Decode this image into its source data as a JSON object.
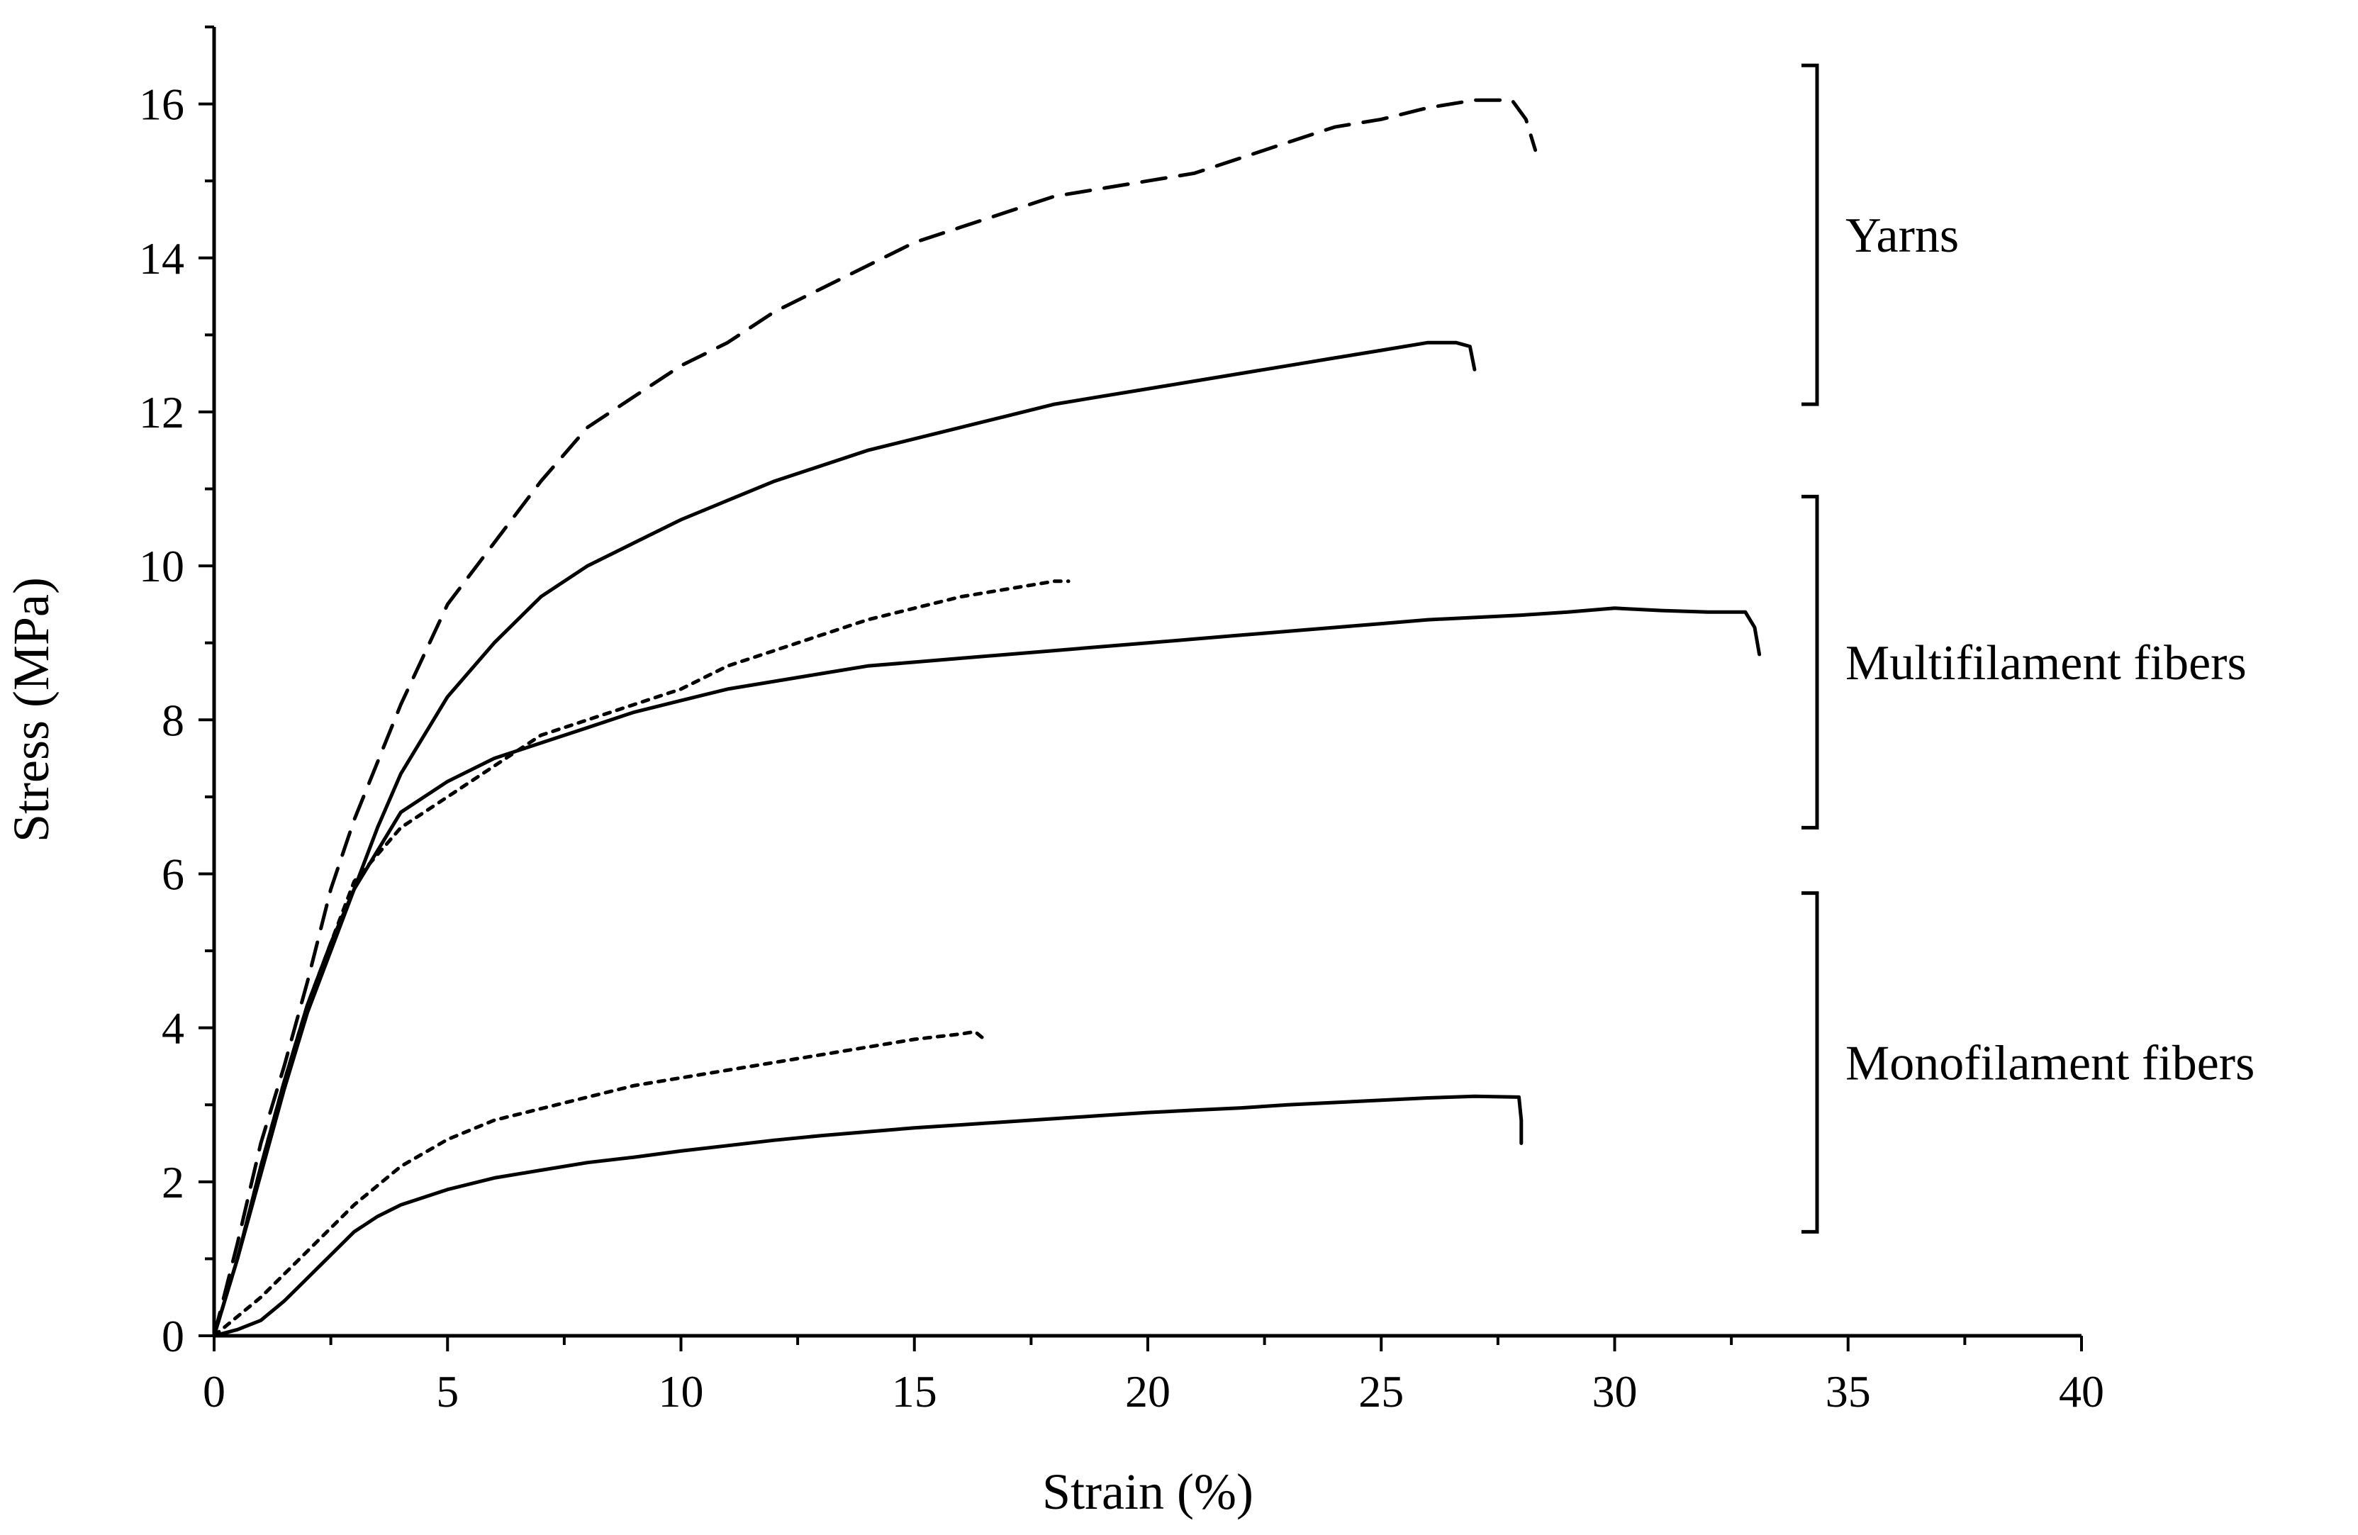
{
  "chart_data": {
    "type": "line",
    "title": "",
    "xlabel": "Strain (%)",
    "ylabel": "Stress (MPa)",
    "xlim": [
      0,
      40
    ],
    "ylim": [
      0,
      17
    ],
    "xticks": [
      0,
      5,
      10,
      15,
      20,
      25,
      30,
      35,
      40
    ],
    "yticks": [
      0,
      2,
      4,
      6,
      8,
      10,
      12,
      14,
      16
    ],
    "xtick_labels": [
      "0",
      "5",
      "10",
      "15",
      "20",
      "25",
      "30",
      "35",
      "40"
    ],
    "ytick_labels": [
      "0",
      "2",
      "4",
      "6",
      "8",
      "10",
      "12",
      "14",
      "16"
    ],
    "grid": false,
    "groups": [
      {
        "label": "Yarns",
        "y_range": [
          12.1,
          16.5
        ]
      },
      {
        "label": "Multifilament fibers",
        "y_range": [
          6.6,
          10.9
        ]
      },
      {
        "label": "Monofilament fibers",
        "y_range": [
          1.35,
          5.75
        ]
      }
    ],
    "series": [
      {
        "name": "Yarns (dashed)",
        "group": "Yarns",
        "style": "dashed",
        "x": [
          0,
          0.5,
          1,
          1.5,
          2,
          2.5,
          3,
          4,
          5,
          6,
          7,
          8,
          9,
          10,
          11,
          12,
          13,
          14,
          15,
          16,
          17,
          18,
          19,
          20,
          21,
          22,
          23,
          24,
          25,
          26,
          27,
          27.8,
          28.1,
          28.3
        ],
        "y": [
          0,
          1.2,
          2.5,
          3.5,
          4.6,
          5.8,
          6.7,
          8.2,
          9.5,
          10.3,
          11.1,
          11.8,
          12.2,
          12.6,
          12.9,
          13.3,
          13.6,
          13.9,
          14.2,
          14.4,
          14.6,
          14.8,
          14.9,
          15.0,
          15.1,
          15.3,
          15.5,
          15.7,
          15.8,
          15.95,
          16.05,
          16.05,
          15.8,
          15.4
        ]
      },
      {
        "name": "Yarns (solid)",
        "group": "Yarns",
        "style": "solid",
        "x": [
          0,
          0.5,
          1,
          1.5,
          2,
          2.5,
          3,
          3.5,
          4,
          5,
          6,
          7,
          8,
          9,
          10,
          11,
          12,
          13,
          14,
          15,
          16,
          17,
          18,
          19,
          20,
          21,
          22,
          23,
          24,
          25,
          26,
          26.6,
          26.9,
          27.0
        ],
        "y": [
          0,
          1.0,
          2.1,
          3.2,
          4.2,
          5.0,
          5.8,
          6.6,
          7.3,
          8.3,
          9.0,
          9.6,
          10.0,
          10.3,
          10.6,
          10.85,
          11.1,
          11.3,
          11.5,
          11.65,
          11.8,
          11.95,
          12.1,
          12.2,
          12.3,
          12.4,
          12.5,
          12.6,
          12.7,
          12.8,
          12.9,
          12.9,
          12.85,
          12.55
        ]
      },
      {
        "name": "Multifilament fibers (dotted)",
        "group": "Multifilament fibers",
        "style": "dotted",
        "x": [
          0,
          0.5,
          1,
          1.5,
          2,
          2.5,
          3,
          4,
          5,
          6,
          7,
          8,
          9,
          10,
          11,
          12,
          13,
          14,
          15,
          16,
          17,
          18,
          18.3
        ],
        "y": [
          0,
          1.0,
          2.2,
          3.3,
          4.3,
          5.1,
          5.9,
          6.6,
          7.0,
          7.4,
          7.8,
          8.0,
          8.2,
          8.4,
          8.7,
          8.9,
          9.1,
          9.3,
          9.45,
          9.6,
          9.7,
          9.8,
          9.8
        ]
      },
      {
        "name": "Multifilament fibers (solid)",
        "group": "Multifilament fibers",
        "style": "solid",
        "x": [
          0,
          0.5,
          1,
          1.5,
          2,
          2.5,
          3,
          3.5,
          4,
          5,
          6,
          7,
          8,
          9,
          10,
          11,
          12,
          13,
          14,
          15,
          16,
          17,
          18,
          19,
          20,
          21,
          22,
          23,
          24,
          25,
          26,
          27,
          28,
          29,
          30,
          31,
          32,
          32.8,
          33.0,
          33.1
        ],
        "y": [
          0,
          1.0,
          2.2,
          3.3,
          4.3,
          5.1,
          5.8,
          6.3,
          6.8,
          7.2,
          7.5,
          7.7,
          7.9,
          8.1,
          8.25,
          8.4,
          8.5,
          8.6,
          8.7,
          8.75,
          8.8,
          8.85,
          8.9,
          8.95,
          9.0,
          9.05,
          9.1,
          9.15,
          9.2,
          9.25,
          9.3,
          9.33,
          9.36,
          9.4,
          9.45,
          9.42,
          9.4,
          9.4,
          9.2,
          8.85
        ]
      },
      {
        "name": "Monofilament fibers (dotted)",
        "group": "Monofilament fibers",
        "style": "dotted",
        "x": [
          0,
          0.5,
          1,
          1.5,
          2,
          3,
          4,
          5,
          6,
          7,
          8,
          9,
          10,
          11,
          12,
          13,
          14,
          15,
          16,
          16.3,
          16.5
        ],
        "y": [
          0,
          0.25,
          0.5,
          0.8,
          1.1,
          1.7,
          2.2,
          2.55,
          2.8,
          2.95,
          3.1,
          3.25,
          3.35,
          3.45,
          3.55,
          3.65,
          3.75,
          3.85,
          3.92,
          3.95,
          3.85
        ]
      },
      {
        "name": "Monofilament fibers (solid)",
        "group": "Monofilament fibers",
        "style": "solid",
        "x": [
          0,
          0.5,
          1,
          1.5,
          2,
          2.5,
          3,
          3.5,
          4,
          5,
          6,
          7,
          8,
          9,
          10,
          11,
          12,
          13,
          14,
          15,
          16,
          17,
          18,
          19,
          20,
          21,
          22,
          23,
          24,
          25,
          26,
          27,
          27.95,
          28.0,
          28.0
        ],
        "y": [
          0,
          0.08,
          0.2,
          0.45,
          0.75,
          1.05,
          1.35,
          1.55,
          1.7,
          1.9,
          2.05,
          2.15,
          2.25,
          2.32,
          2.4,
          2.47,
          2.54,
          2.6,
          2.65,
          2.7,
          2.74,
          2.78,
          2.82,
          2.86,
          2.9,
          2.93,
          2.96,
          3.0,
          3.03,
          3.06,
          3.09,
          3.11,
          3.1,
          2.8,
          2.5
        ]
      }
    ]
  }
}
